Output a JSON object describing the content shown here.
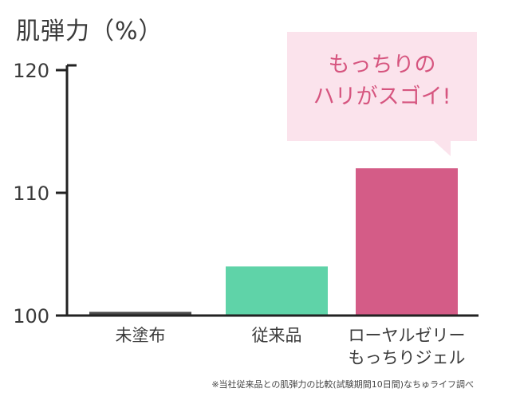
{
  "chart_data": {
    "type": "bar",
    "ylabel": "肌弾力（%）",
    "ylim": [
      100,
      120
    ],
    "yticks": [
      100,
      110,
      120
    ],
    "grid": false,
    "categories": [
      [
        "未塗布"
      ],
      [
        "従来品"
      ],
      [
        "ローヤルゼリー",
        "もっちりジェル"
      ]
    ],
    "values": [
      100.3,
      104,
      112
    ],
    "colors": [
      "#4a4a4a",
      "#5fd3a8",
      "#d45c87"
    ]
  },
  "callout": {
    "text": "もっちりの\nハリがスゴイ!"
  },
  "footnote": "※当社従来品との肌弾力の比較(試験期間10日間)なちゅライフ調べ"
}
